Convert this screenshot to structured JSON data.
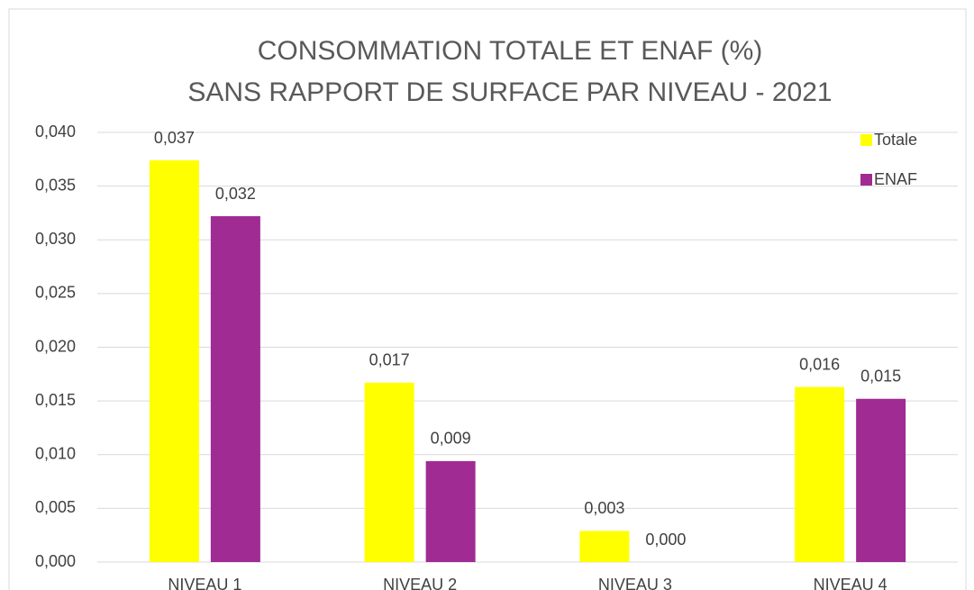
{
  "chart_data": {
    "type": "bar",
    "title": "CONSOMMATION TOTALE ET ENAF (%)",
    "subtitle": "SANS RAPPORT DE SURFACE PAR NIVEAU -  2021",
    "categories": [
      "NIVEAU 1",
      "NIVEAU 2",
      "NIVEAU 3",
      "NIVEAU 4"
    ],
    "series": [
      {
        "name": "Totale",
        "color": "#ffff00",
        "values": [
          0.0374,
          0.0167,
          0.0029,
          0.0163
        ],
        "value_labels": [
          "0,037",
          "0,017",
          "0,003",
          "0,016"
        ]
      },
      {
        "name": "ENAF",
        "color": "#a02b93",
        "values": [
          0.0322,
          0.0094,
          0,
          0.0152
        ],
        "value_labels": [
          "0,032",
          "0,009",
          "0,000",
          "0,015"
        ]
      }
    ],
    "ylim": [
      0,
      0.04
    ],
    "yticks": [
      {
        "value": 0,
        "label": "0,000"
      },
      {
        "value": 0.005,
        "label": "0,005"
      },
      {
        "value": 0.01,
        "label": "0,010"
      },
      {
        "value": 0.015,
        "label": "0,015"
      },
      {
        "value": 0.02,
        "label": "0,020"
      },
      {
        "value": 0.025,
        "label": "0,025"
      },
      {
        "value": 0.03,
        "label": "0,030"
      },
      {
        "value": 0.035,
        "label": "0,035"
      },
      {
        "value": 0.04,
        "label": "0,040"
      }
    ],
    "grid": true,
    "legend": "top-right"
  }
}
